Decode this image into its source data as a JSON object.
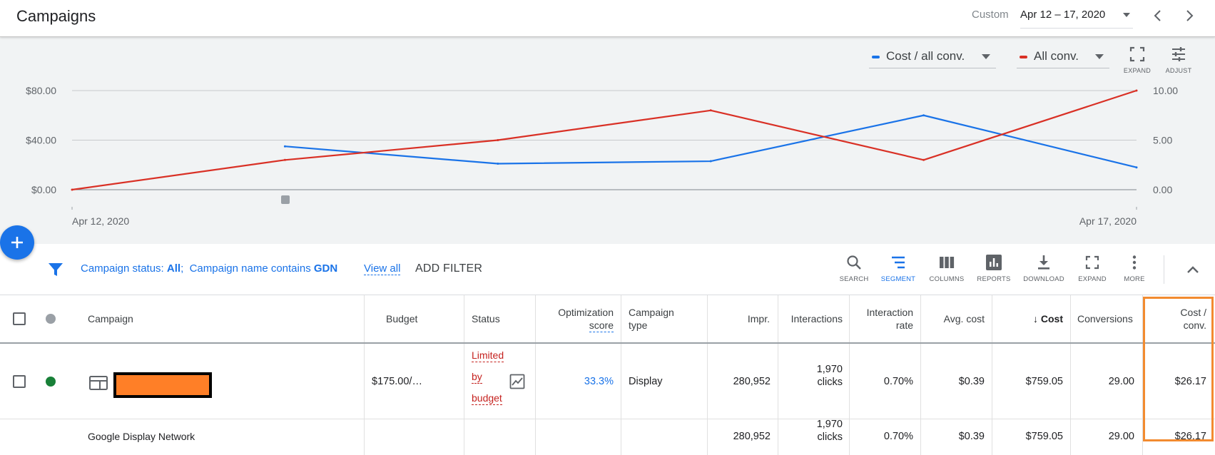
{
  "header": {
    "title": "Campaigns",
    "date_mode": "Custom",
    "date_range": "Apr 12 – 17, 2020"
  },
  "chart": {
    "metric_1": {
      "label": "Cost / all conv.",
      "color": "#1a73e8"
    },
    "metric_2": {
      "label": "All conv.",
      "color": "#d93025"
    },
    "expand_label": "EXPAND",
    "adjust_label": "ADJUST"
  },
  "chart_data": {
    "type": "line",
    "x": [
      "Apr 12, 2020",
      "Apr 13, 2020",
      "Apr 14, 2020",
      "Apr 15, 2020",
      "Apr 16, 2020",
      "Apr 17, 2020"
    ],
    "x_tick_labels": [
      "Apr 12, 2020",
      "Apr 17, 2020"
    ],
    "y_left_ticks": [
      "$80.00",
      "$40.00",
      "$0.00"
    ],
    "y_right_ticks": [
      "10.00",
      "5.00",
      "0.00"
    ],
    "y_left_range": [
      0,
      80
    ],
    "y_right_range": [
      0,
      10
    ],
    "series": [
      {
        "name": "Cost / all conv.",
        "axis": "left",
        "color": "#1a73e8",
        "values": [
          null,
          35,
          21,
          23,
          60,
          18
        ]
      },
      {
        "name": "All conv.",
        "axis": "right",
        "color": "#d93025",
        "values": [
          0,
          3,
          5,
          8,
          3,
          10
        ]
      }
    ],
    "grid": true
  },
  "filter_bar": {
    "status_prefix": "Campaign status: ",
    "status_value": "All",
    "sep": ";",
    "name_prefix": "Campaign name contains ",
    "name_value": "GDN",
    "view_all": "View all",
    "add_filter": "ADD FILTER",
    "tools": {
      "search": "SEARCH",
      "segment": "SEGMENT",
      "columns": "COLUMNS",
      "reports": "REPORTS",
      "download": "DOWNLOAD",
      "expand": "EXPAND",
      "more": "MORE"
    }
  },
  "table": {
    "headers": {
      "campaign": "Campaign",
      "budget": "Budget",
      "status": "Status",
      "opt_score_1": "Optimization",
      "opt_score_2": "score",
      "type_1": "Campaign",
      "type_2": "type",
      "impr": "Impr.",
      "interactions": "Interactions",
      "rate_1": "Interaction",
      "rate_2": "rate",
      "avg_cost": "Avg. cost",
      "cost": "Cost",
      "conversions": "Conversions",
      "cost_conv_1": "Cost /",
      "cost_conv_2": "conv."
    },
    "campaign_row": {
      "budget": "$175.00/…",
      "status_1": "Limited",
      "status_2": "by",
      "status_3": "budget",
      "opt_score": "33.3%",
      "type": "Display",
      "impr": "280,952",
      "interactions_1": "1,970",
      "interactions_2": "clicks",
      "rate": "0.70%",
      "avg_cost": "$0.39",
      "cost": "$759.05",
      "conversions": "29.00",
      "cost_conv": "$26.17",
      "status_color": "#188038"
    },
    "network_row": {
      "name": "Google Display Network",
      "impr": "280,952",
      "interactions_1": "1,970",
      "interactions_2": "clicks",
      "rate": "0.70%",
      "avg_cost": "$0.39",
      "cost": "$759.05",
      "conversions": "29.00",
      "cost_conv": "$26.17"
    }
  }
}
